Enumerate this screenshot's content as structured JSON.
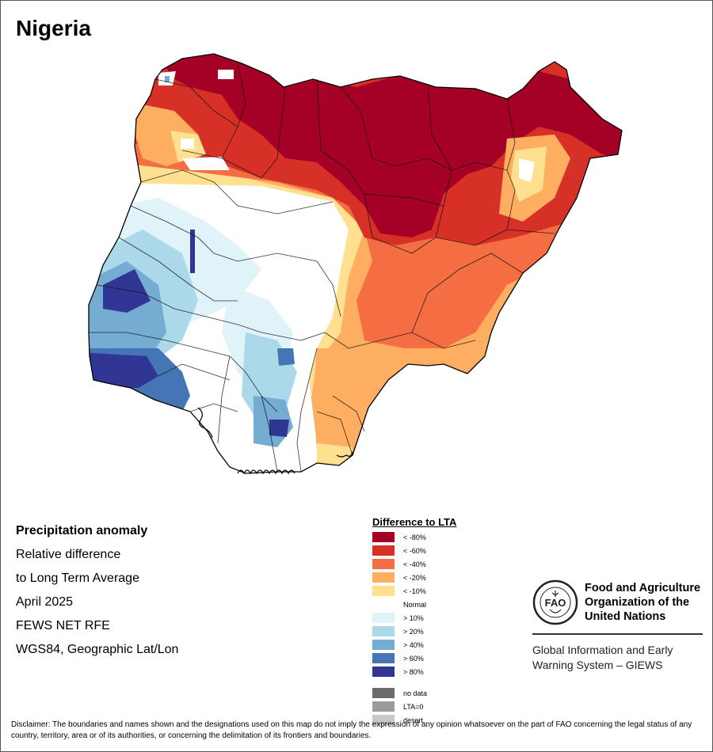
{
  "title": "Nigeria",
  "info": {
    "heading": "Precipitation anomaly",
    "line1": "Relative difference",
    "line2": "to Long Term Average",
    "line3": "April 2025",
    "line4": "FEWS NET RFE",
    "line5": "WGS84, Geographic Lat/Lon"
  },
  "legend": {
    "title": "Difference to LTA",
    "classes": [
      {
        "label": "< -80%",
        "color": "#a50026"
      },
      {
        "label": "< -60%",
        "color": "#d73027"
      },
      {
        "label": "< -40%",
        "color": "#f46d43"
      },
      {
        "label": "< -20%",
        "color": "#fdae61"
      },
      {
        "label": "< -10%",
        "color": "#fee090"
      },
      {
        "label": "Normal",
        "color": "#ffffff"
      },
      {
        "label": "> 10%",
        "color": "#e0f3f8"
      },
      {
        "label": "> 20%",
        "color": "#abd9e9"
      },
      {
        "label": "> 40%",
        "color": "#74add1"
      },
      {
        "label": "> 60%",
        "color": "#4575b4"
      },
      {
        "label": "> 80%",
        "color": "#313695"
      }
    ],
    "extra": [
      {
        "label": "no data",
        "color": "#6b6b6b"
      },
      {
        "label": "LTA=0",
        "color": "#9b9b9b"
      },
      {
        "label": "desert",
        "color": "#c8c8c8"
      }
    ]
  },
  "fao": {
    "name_line1": "Food and Agriculture",
    "name_line2": "Organization of the",
    "name_line3": "United Nations",
    "logo_text": "FAO",
    "logo_motto": "FIAT PANIS",
    "giews_line1": "Global Information and Early",
    "giews_line2": "Warning System – GIEWS"
  },
  "disclaimer": "Disclaimer: The boundaries and names shown and the designations used on this map do not imply the expression of any opinion whatsoever on the part of FAO concerning the legal status of any country, territory, area or of its authorities, or concerning the delimitation of its frontiers and boundaries."
}
